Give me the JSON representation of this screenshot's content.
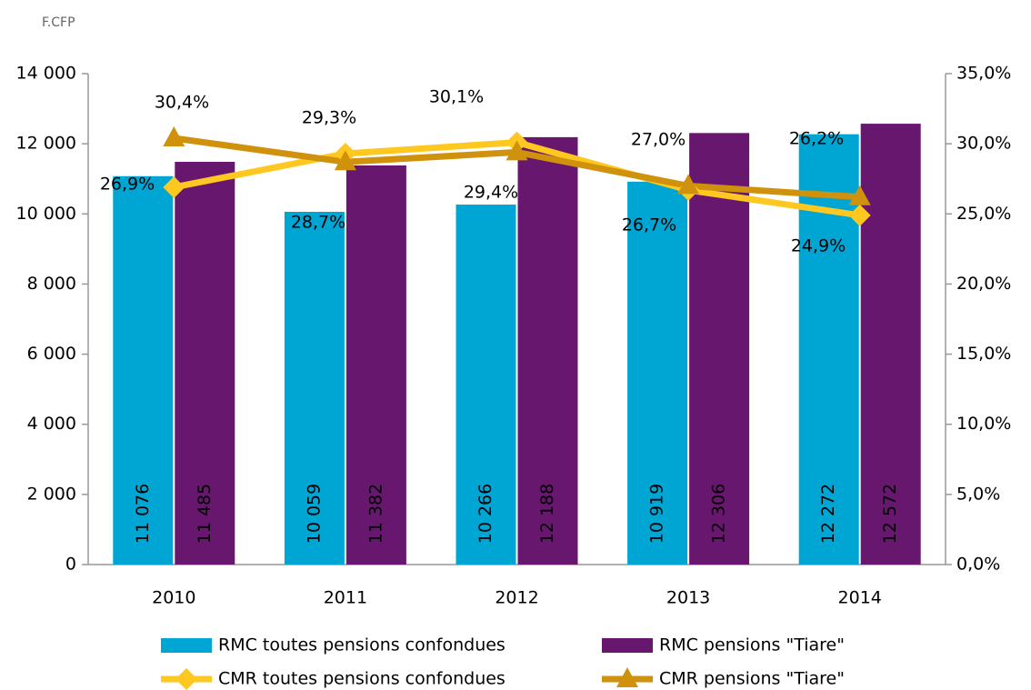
{
  "chart_data": {
    "type": "bar",
    "y_unit_label": "F.CFP",
    "categories": [
      "2010",
      "2011",
      "2012",
      "2013",
      "2014"
    ],
    "series": [
      {
        "name": "RMC toutes pensions confondues",
        "color": "#00a6d3",
        "type": "bar",
        "values": [
          11076,
          10059,
          10266,
          10919,
          12272
        ],
        "value_labels": [
          "11 076",
          "10 059",
          "10 266",
          "10 919",
          "12 272"
        ]
      },
      {
        "name": "RMC pensions \"Tiare\"",
        "color": "#68176f",
        "type": "bar",
        "values": [
          11485,
          11382,
          12188,
          12306,
          12572
        ],
        "value_labels": [
          "11 485",
          "11 382",
          "12 188",
          "12 306",
          "12 572"
        ]
      },
      {
        "name": "CMR toutes pensions confondues",
        "color": "#ffc820",
        "type": "line",
        "axis": "y2",
        "marker": "diamond",
        "values": [
          26.9,
          29.3,
          30.1,
          26.7,
          24.9
        ],
        "value_labels": [
          "26,9%",
          "29,3%",
          "30,1%",
          "26,7%",
          "24,9%"
        ]
      },
      {
        "name": "CMR pensions \"Tiare\"",
        "color": "#d0920c",
        "type": "line",
        "axis": "y2",
        "marker": "triangle",
        "values": [
          30.4,
          28.7,
          29.4,
          27.0,
          26.2
        ],
        "value_labels": [
          "30,4%",
          "28,7%",
          "29,4%",
          "27,0%",
          "26,2%"
        ]
      }
    ],
    "ylim": [
      0,
      14000
    ],
    "yticks": [
      0,
      {
        "value": 2000,
        "label": "2 000"
      },
      {
        "value": 4000,
        "label": "4 000"
      },
      {
        "value": 6000,
        "label": "6 000"
      },
      {
        "value": 8000,
        "label": "8 000"
      },
      {
        "value": 10000,
        "label": "10 000"
      },
      {
        "value": 12000,
        "label": "12 000"
      },
      {
        "value": 14000,
        "label": "14 000"
      }
    ],
    "y2lim": [
      0,
      35
    ],
    "y2ticks": [
      {
        "value": 0,
        "label": "0,0%"
      },
      {
        "value": 5,
        "label": "5,0%"
      },
      {
        "value": 10,
        "label": "10,0%"
      },
      {
        "value": 15,
        "label": "15,0%"
      },
      {
        "value": 20,
        "label": "20,0%"
      },
      {
        "value": 25,
        "label": "25,0%"
      },
      {
        "value": 30,
        "label": "30,0%"
      },
      {
        "value": 35,
        "label": "35,0%"
      }
    ],
    "grid": false,
    "legend": "bottom"
  }
}
